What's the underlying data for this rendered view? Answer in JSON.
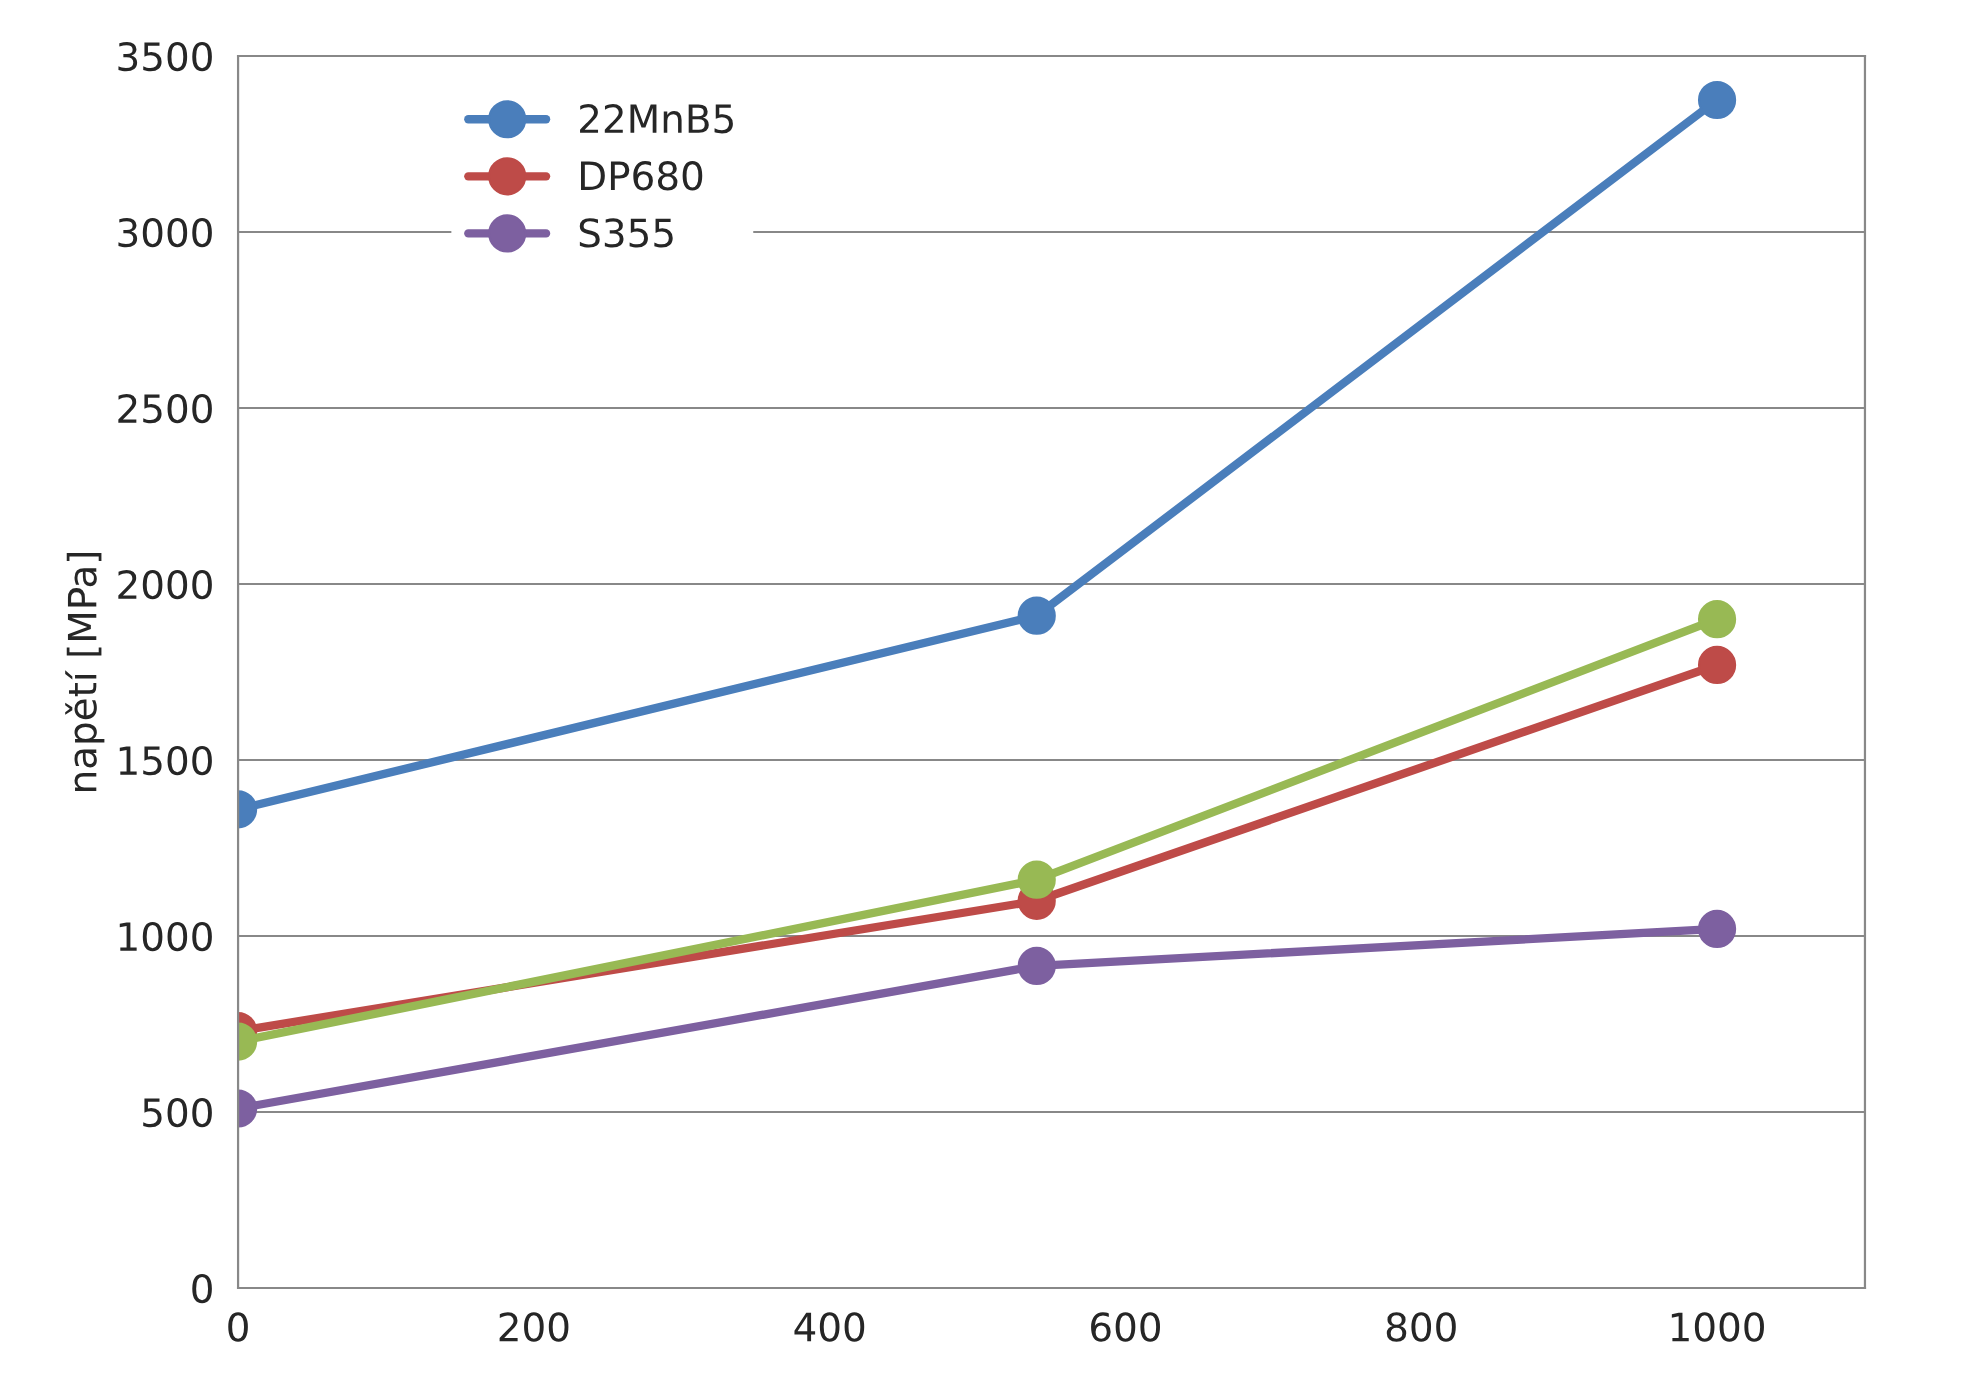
{
  "chart_data": {
    "type": "line",
    "ylabel": "napětí [MPa]",
    "x": [
      0,
      540,
      1000
    ],
    "series": [
      {
        "name": "22MnB5",
        "color": "#4a7ebb",
        "values": [
          1360,
          1910,
          3375
        ]
      },
      {
        "name": "DP680",
        "color": "#be4b48",
        "values": [
          730,
          1100,
          1770
        ]
      },
      {
        "color": "#98b954",
        "values": [
          700,
          1160,
          1900
        ]
      },
      {
        "name": "S355",
        "color": "#7d60a0",
        "values": [
          510,
          915,
          1020
        ]
      }
    ],
    "xlim": [
      0,
      1100
    ],
    "xticks": [
      0,
      200,
      400,
      600,
      800,
      1000
    ],
    "ylim": [
      0,
      3500
    ],
    "yticks": [
      0,
      500,
      1000,
      1500,
      2000,
      2500,
      3000,
      3500
    ],
    "grid": "y",
    "legend": "top left",
    "marker": "circle",
    "line_style": "solid"
  }
}
